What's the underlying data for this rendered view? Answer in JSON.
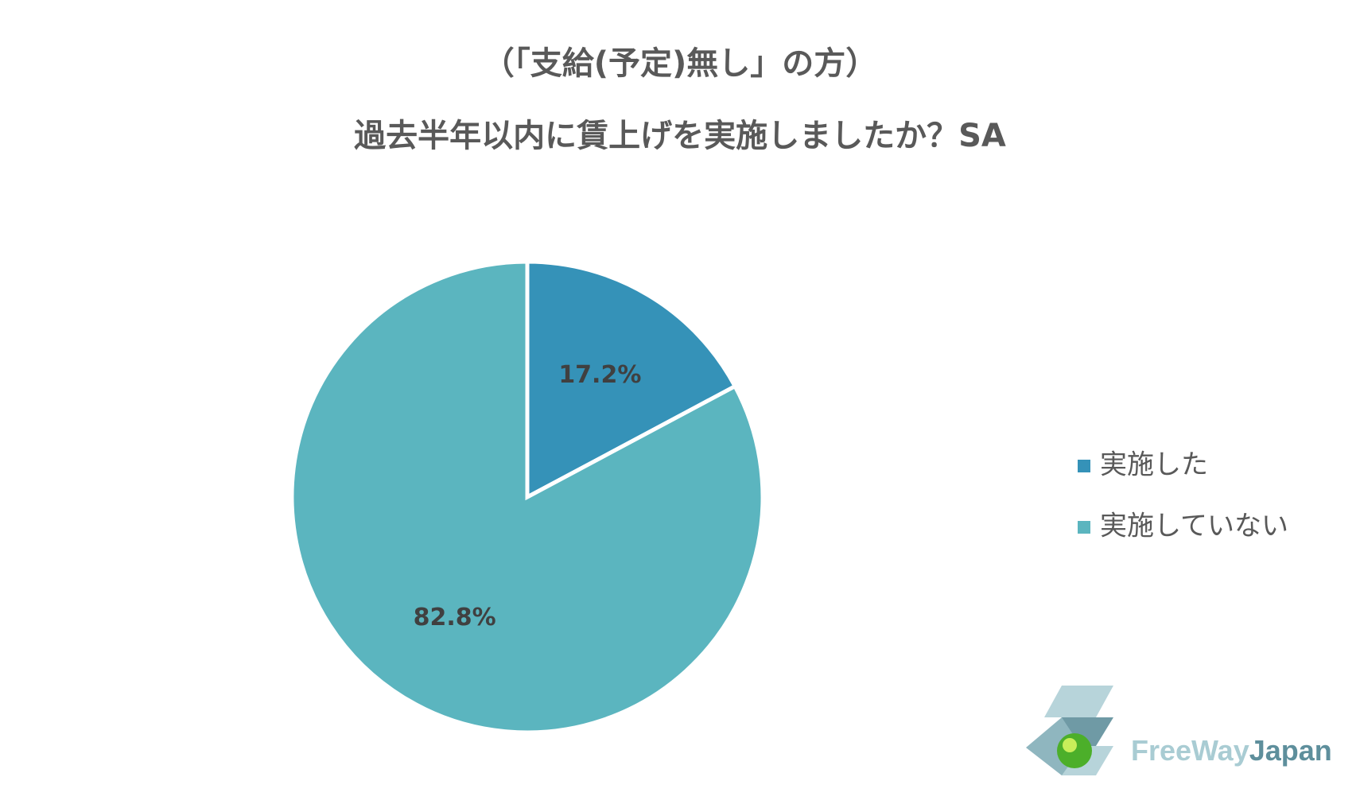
{
  "chart_data": {
    "type": "pie",
    "title": [
      "（「支給(予定)無し」の方）",
      "過去半年以内に賃上げを実施しましたか？SA"
    ],
    "categories": [
      "実施した",
      "実施していない"
    ],
    "values": [
      17.2,
      82.8
    ],
    "value_labels": [
      "17.2%",
      "82.8%"
    ],
    "colors": [
      "#3592b8",
      "#5bb5bf"
    ],
    "legend": "right"
  },
  "logo": [
    "FreeWay",
    "Japan"
  ]
}
